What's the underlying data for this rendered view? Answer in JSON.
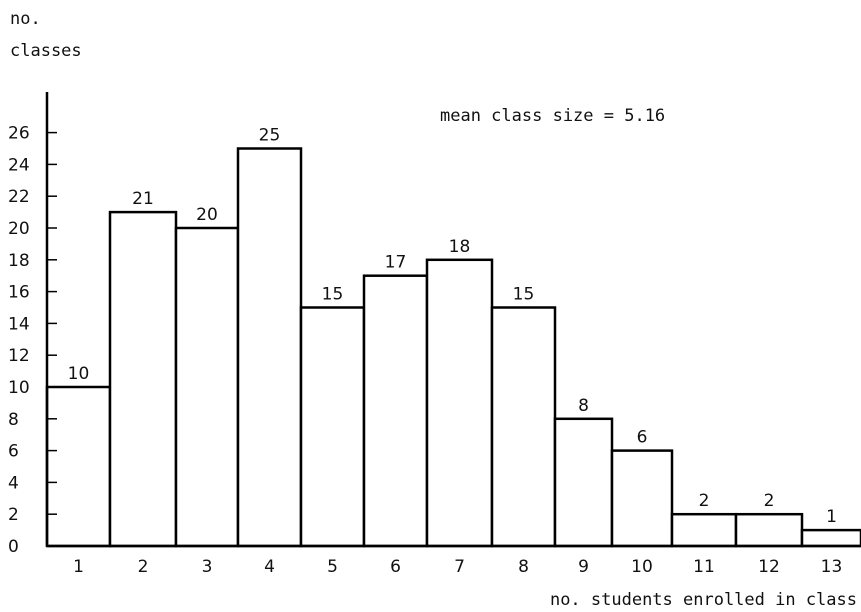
{
  "chart_data": {
    "type": "bar",
    "title": "",
    "ylabel_line1": "no.",
    "ylabel_line2": "classes",
    "xlabel": "no. students enrolled in class",
    "annotation": "mean class size = 5.16",
    "categories": [
      "1",
      "2",
      "3",
      "4",
      "5",
      "6",
      "7",
      "8",
      "9",
      "10",
      "11",
      "12",
      "13"
    ],
    "values": [
      10,
      21,
      20,
      25,
      15,
      17,
      18,
      15,
      8,
      6,
      2,
      2,
      1
    ],
    "yticks": [
      "0",
      "2",
      "4",
      "6",
      "8",
      "10",
      "12",
      "14",
      "16",
      "18",
      "20",
      "22",
      "24",
      "26"
    ],
    "ylim": [
      0,
      26
    ],
    "grid": false,
    "legend": "none",
    "bar_fill": "#ffffff",
    "bar_stroke": "#000000"
  }
}
